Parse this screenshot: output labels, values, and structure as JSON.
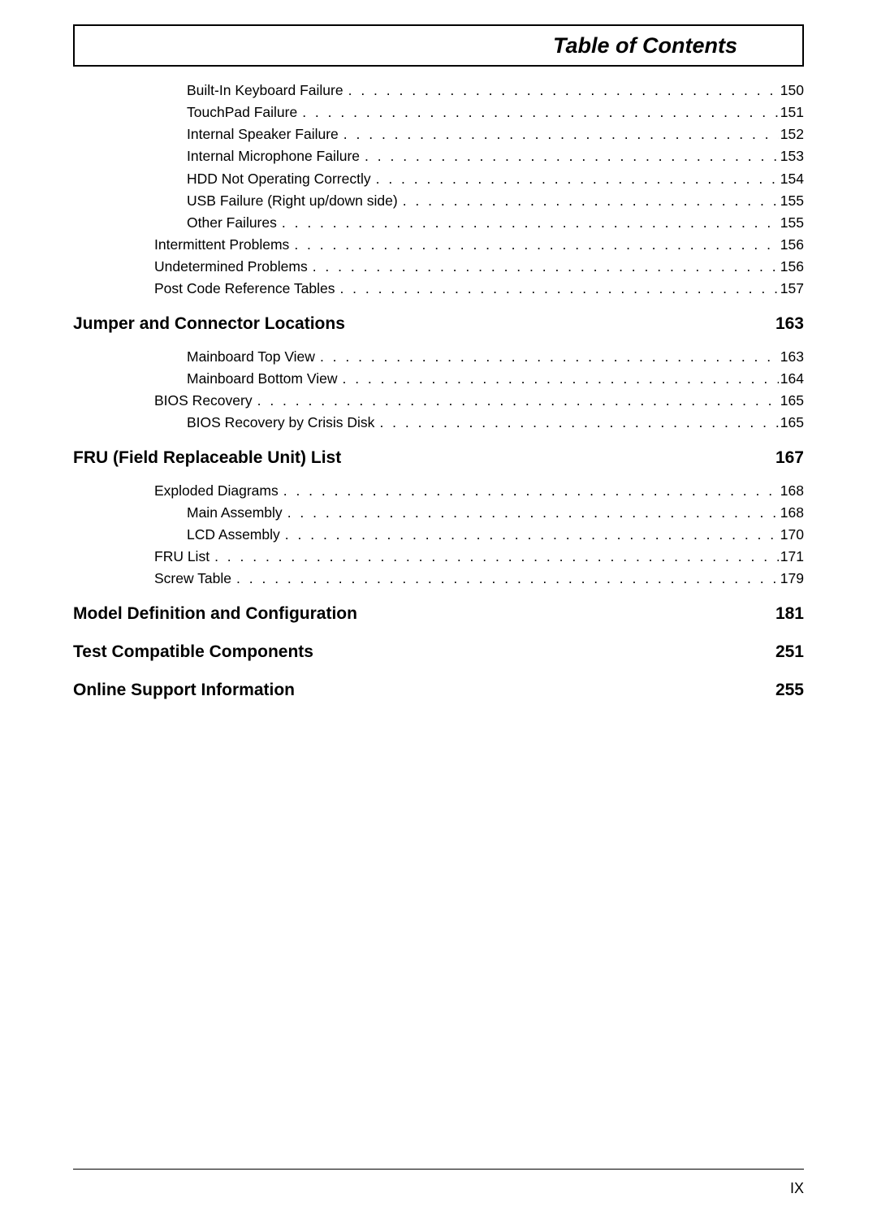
{
  "title": "Table of Contents",
  "page_number": "IX",
  "entries": [
    {
      "type": "item",
      "indent": 2,
      "label": "Built-In Keyboard Failure",
      "page": "150"
    },
    {
      "type": "item",
      "indent": 2,
      "label": "TouchPad Failure",
      "page": "151"
    },
    {
      "type": "item",
      "indent": 2,
      "label": "Internal Speaker Failure",
      "page": "152"
    },
    {
      "type": "item",
      "indent": 2,
      "label": "Internal Microphone Failure",
      "page": "153"
    },
    {
      "type": "item",
      "indent": 2,
      "label": "HDD Not Operating Correctly",
      "page": "154"
    },
    {
      "type": "item",
      "indent": 2,
      "label": "USB Failure (Right up/down side)",
      "page": "155"
    },
    {
      "type": "item",
      "indent": 2,
      "label": "Other Failures",
      "page": "155"
    },
    {
      "type": "item",
      "indent": 1,
      "label": "Intermittent Problems",
      "page": "156"
    },
    {
      "type": "item",
      "indent": 1,
      "label": "Undetermined Problems",
      "page": "156"
    },
    {
      "type": "item",
      "indent": 1,
      "label": "Post Code Reference Tables",
      "page": "157"
    },
    {
      "type": "chapter",
      "label": "Jumper and Connector Locations",
      "page": "163"
    },
    {
      "type": "item",
      "indent": 2,
      "label": "Mainboard Top View",
      "page": "163"
    },
    {
      "type": "item",
      "indent": 2,
      "label": "Mainboard Bottom View",
      "page": "164"
    },
    {
      "type": "item",
      "indent": 1,
      "label": "BIOS Recovery",
      "page": "165"
    },
    {
      "type": "item",
      "indent": 2,
      "label": "BIOS Recovery by Crisis Disk",
      "page": "165"
    },
    {
      "type": "chapter",
      "label": "FRU (Field Replaceable Unit) List",
      "page": "167"
    },
    {
      "type": "item",
      "indent": 1,
      "label": "Exploded Diagrams",
      "page": "168"
    },
    {
      "type": "item",
      "indent": 2,
      "label": "Main Assembly",
      "page": "168"
    },
    {
      "type": "item",
      "indent": 2,
      "label": "LCD Assembly",
      "page": "170"
    },
    {
      "type": "item",
      "indent": 1,
      "label": "FRU List",
      "page": "171"
    },
    {
      "type": "item",
      "indent": 1,
      "label": "Screw Table",
      "page": "179"
    },
    {
      "type": "chapter-only",
      "label": "Model Definition and Configuration",
      "page": "181"
    },
    {
      "type": "chapter-only",
      "label": "Test Compatible Components",
      "page": "251"
    },
    {
      "type": "chapter-only",
      "label": "Online Support Information",
      "page": "255"
    }
  ]
}
